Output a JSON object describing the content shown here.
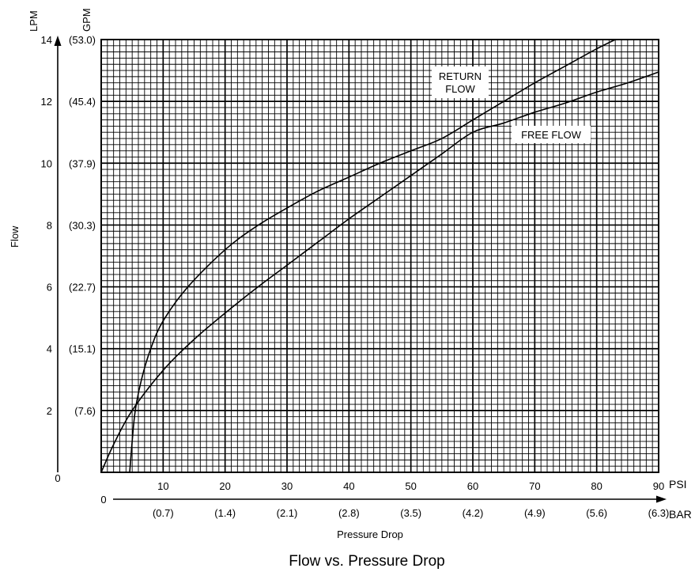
{
  "title": "Flow vs. Pressure Drop",
  "chart_data": {
    "type": "line",
    "title": "Flow vs. Pressure Drop",
    "xlabel": "Pressure Drop",
    "ylabel": "Flow",
    "x_unit": "PSI",
    "x_unit_secondary": "BAR",
    "y_unit": "LPM",
    "y_unit_secondary": "GPM",
    "xlim": [
      0,
      90
    ],
    "ylim": [
      0,
      14
    ],
    "grid": true,
    "x_ticks": [
      {
        "value": 10,
        "label": "10",
        "label2": "(0.7)"
      },
      {
        "value": 20,
        "label": "20",
        "label2": "(1.4)"
      },
      {
        "value": 30,
        "label": "30",
        "label2": "(2.1)"
      },
      {
        "value": 40,
        "label": "40",
        "label2": "(2.8)"
      },
      {
        "value": 50,
        "label": "50",
        "label2": "(3.5)"
      },
      {
        "value": 60,
        "label": "60",
        "label2": "(4.2)"
      },
      {
        "value": 70,
        "label": "70",
        "label2": "(4.9)"
      },
      {
        "value": 80,
        "label": "80",
        "label2": "(5.6)"
      },
      {
        "value": 90,
        "label": "90",
        "label2": "(6.3)"
      }
    ],
    "x_origin_label": "0",
    "y_ticks": [
      {
        "value": 2,
        "label": "2",
        "label2": "(7.6)"
      },
      {
        "value": 4,
        "label": "4",
        "label2": "(15.1)"
      },
      {
        "value": 6,
        "label": "6",
        "label2": "(22.7)"
      },
      {
        "value": 8,
        "label": "8",
        "label2": "(30.3)"
      },
      {
        "value": 10,
        "label": "10",
        "label2": "(37.9)"
      },
      {
        "value": 12,
        "label": "12",
        "label2": "(45.4)"
      },
      {
        "value": 14,
        "label": "14",
        "label2": "(53.0)"
      }
    ],
    "y_origin_label": "0",
    "series": [
      {
        "name": "RETURN FLOW",
        "x": [
          4.6,
          5.0,
          5.5,
          6.5,
          8.0,
          10.0,
          14.0,
          20.0,
          25.0,
          30.0,
          35.0,
          40.0,
          45.0,
          50.0,
          55.0,
          60.0,
          65.0,
          70.0,
          75.0,
          80.0,
          83.0
        ],
        "y": [
          0,
          1.0,
          2.0,
          3.0,
          4.0,
          4.9,
          6.0,
          7.2,
          7.95,
          8.55,
          9.1,
          9.55,
          10.0,
          10.4,
          10.8,
          11.4,
          12.0,
          12.6,
          13.15,
          13.7,
          14.0
        ]
      },
      {
        "name": "FREE FLOW",
        "x": [
          0,
          2.0,
          5.0,
          10.0,
          15.0,
          20.0,
          25.0,
          30.0,
          35.0,
          40.0,
          45.0,
          50.0,
          55.0,
          60.0,
          65.0,
          70.0,
          75.0,
          80.0,
          85.0,
          90.0
        ],
        "y": [
          0,
          0.9,
          2.0,
          3.3,
          4.3,
          5.15,
          5.95,
          6.7,
          7.45,
          8.2,
          8.9,
          9.6,
          10.3,
          11.0,
          11.3,
          11.65,
          11.95,
          12.3,
          12.6,
          12.95
        ]
      }
    ],
    "annotations": [
      {
        "series": "RETURN FLOW",
        "lines": [
          "RETURN",
          "FLOW"
        ]
      },
      {
        "series": "FREE FLOW",
        "lines": [
          "FREE FLOW"
        ]
      }
    ]
  }
}
